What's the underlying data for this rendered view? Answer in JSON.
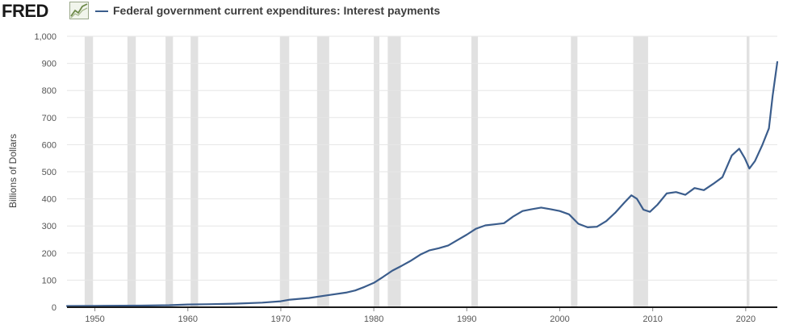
{
  "header": {
    "logo_text": "FRED",
    "logo_icon": "fred-chart-icon",
    "legend_label": "Federal government current expenditures: Interest payments",
    "legend_color": "#3b5d8c"
  },
  "chart_data": {
    "type": "line",
    "title": "Federal government current expenditures: Interest payments",
    "xlabel": "",
    "ylabel": "Billions of Dollars",
    "xlim": [
      1947.0,
      2023.4
    ],
    "ylim": [
      0,
      1000
    ],
    "yticks": [
      0,
      100,
      200,
      300,
      400,
      500,
      600,
      700,
      800,
      900,
      1000
    ],
    "ytick_labels": [
      "0",
      "100",
      "200",
      "300",
      "400",
      "500",
      "600",
      "700",
      "800",
      "900",
      "1,000"
    ],
    "xticks": [
      1950,
      1960,
      1970,
      1980,
      1990,
      2000,
      2010,
      2020
    ],
    "xtick_labels": [
      "1950",
      "1960",
      "1970",
      "1980",
      "1990",
      "2000",
      "2010",
      "2020"
    ],
    "grid": "horizontal",
    "line_color": "#3b5d8c",
    "recession_color": "#e1e1e1",
    "recessions": [
      [
        1948.9,
        1949.8
      ],
      [
        1953.5,
        1954.4
      ],
      [
        1957.6,
        1958.4
      ],
      [
        1960.3,
        1961.1
      ],
      [
        1969.9,
        1970.9
      ],
      [
        1973.9,
        1975.2
      ],
      [
        1980.0,
        1980.6
      ],
      [
        1981.5,
        1982.9
      ],
      [
        1990.5,
        1991.2
      ],
      [
        2001.2,
        2001.9
      ],
      [
        2007.9,
        2009.5
      ],
      [
        2020.1,
        2020.4
      ]
    ],
    "series": [
      {
        "values": [
          [
            1947,
            4.5
          ],
          [
            1950,
            5
          ],
          [
            1955,
            6
          ],
          [
            1958,
            7.5
          ],
          [
            1960,
            10
          ],
          [
            1962,
            11
          ],
          [
            1965,
            13
          ],
          [
            1968,
            17
          ],
          [
            1970,
            22
          ],
          [
            1971,
            28
          ],
          [
            1973,
            34
          ],
          [
            1975,
            44
          ],
          [
            1977,
            54
          ],
          [
            1978,
            62
          ],
          [
            1979,
            75
          ],
          [
            1980,
            90
          ],
          [
            1981,
            112
          ],
          [
            1982,
            135
          ],
          [
            1983,
            153
          ],
          [
            1984,
            172
          ],
          [
            1985,
            194
          ],
          [
            1986,
            210
          ],
          [
            1987,
            218
          ],
          [
            1988,
            228
          ],
          [
            1989,
            248
          ],
          [
            1990,
            268
          ],
          [
            1991,
            290
          ],
          [
            1992,
            302
          ],
          [
            1993,
            306
          ],
          [
            1994,
            310
          ],
          [
            1995,
            335
          ],
          [
            1996,
            355
          ],
          [
            1997,
            362
          ],
          [
            1998,
            368
          ],
          [
            1999,
            362
          ],
          [
            2000,
            355
          ],
          [
            2001,
            343
          ],
          [
            2002,
            308
          ],
          [
            2003,
            295
          ],
          [
            2004,
            297
          ],
          [
            2005,
            318
          ],
          [
            2006,
            350
          ],
          [
            2007,
            388
          ],
          [
            2007.7,
            413
          ],
          [
            2008.3,
            400
          ],
          [
            2009,
            360
          ],
          [
            2009.7,
            352
          ],
          [
            2010.5,
            378
          ],
          [
            2011.5,
            420
          ],
          [
            2012.5,
            425
          ],
          [
            2013.5,
            415
          ],
          [
            2014.5,
            440
          ],
          [
            2015.5,
            432
          ],
          [
            2016.5,
            455
          ],
          [
            2017.5,
            480
          ],
          [
            2018.5,
            560
          ],
          [
            2019.3,
            585
          ],
          [
            2019.9,
            550
          ],
          [
            2020.4,
            512
          ],
          [
            2021,
            540
          ],
          [
            2021.8,
            600
          ],
          [
            2022.5,
            660
          ],
          [
            2022.9,
            780
          ],
          [
            2023.4,
            905
          ]
        ]
      }
    ]
  }
}
